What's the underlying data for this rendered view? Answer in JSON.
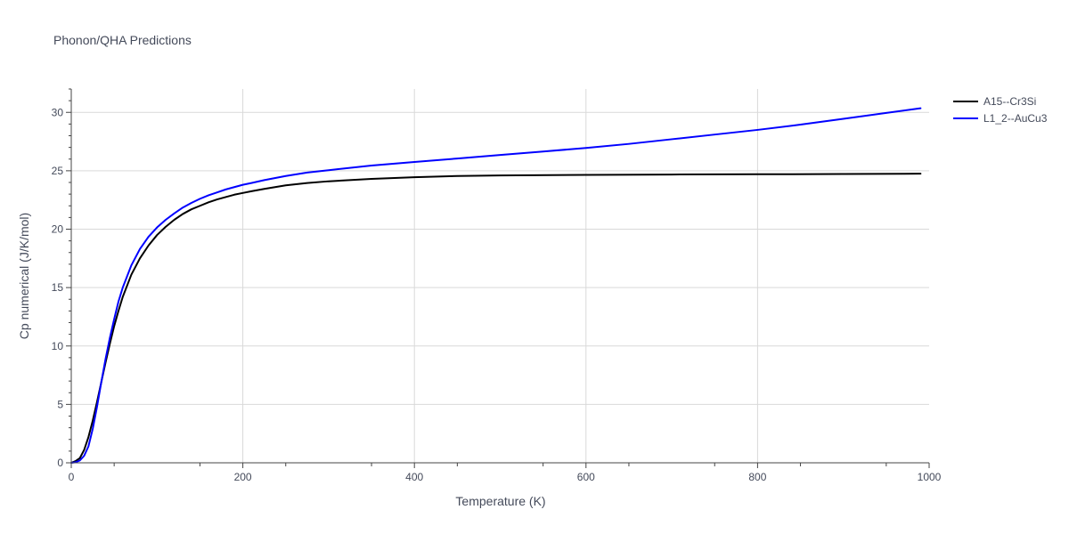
{
  "chart_data": {
    "type": "line",
    "title": "Phonon/QHA Predictions",
    "xlabel": "Temperature (K)",
    "ylabel": "Cp numerical (J/K/mol)",
    "xlim": [
      0,
      1000
    ],
    "ylim": [
      0,
      32
    ],
    "x_ticks": [
      0,
      200,
      400,
      600,
      800,
      1000
    ],
    "y_ticks": [
      0,
      5,
      10,
      15,
      20,
      25,
      30
    ],
    "grid": true,
    "legend_position": "top-right",
    "series": [
      {
        "name": "A15--Cr3Si",
        "color": "#000000",
        "x": [
          0,
          5,
          10,
          15,
          20,
          25,
          30,
          35,
          40,
          45,
          50,
          55,
          60,
          70,
          80,
          90,
          100,
          110,
          120,
          130,
          140,
          150,
          160,
          170,
          180,
          190,
          200,
          210,
          225,
          250,
          275,
          300,
          350,
          400,
          450,
          500,
          600,
          700,
          800,
          900,
          990
        ],
        "y": [
          0,
          0.15,
          0.4,
          1.1,
          2.2,
          3.6,
          5.2,
          6.9,
          8.6,
          10.2,
          11.7,
          13.0,
          14.2,
          16.1,
          17.5,
          18.6,
          19.5,
          20.2,
          20.8,
          21.3,
          21.7,
          22.0,
          22.3,
          22.55,
          22.75,
          22.95,
          23.1,
          23.25,
          23.45,
          23.75,
          23.95,
          24.1,
          24.3,
          24.45,
          24.55,
          24.6,
          24.65,
          24.68,
          24.7,
          24.72,
          24.75
        ]
      },
      {
        "name": "L1_2--AuCu3",
        "color": "#0000ff",
        "x": [
          0,
          5,
          10,
          15,
          20,
          25,
          30,
          35,
          40,
          45,
          50,
          55,
          60,
          70,
          80,
          90,
          100,
          110,
          120,
          130,
          140,
          150,
          160,
          170,
          180,
          190,
          200,
          210,
          225,
          250,
          275,
          300,
          350,
          400,
          450,
          500,
          550,
          600,
          650,
          700,
          750,
          800,
          850,
          900,
          950,
          990
        ],
        "y": [
          0,
          0.05,
          0.2,
          0.6,
          1.4,
          2.9,
          4.8,
          6.9,
          8.9,
          10.7,
          12.3,
          13.8,
          15.0,
          16.9,
          18.3,
          19.35,
          20.15,
          20.8,
          21.35,
          21.85,
          22.25,
          22.6,
          22.9,
          23.15,
          23.4,
          23.6,
          23.8,
          23.95,
          24.2,
          24.55,
          24.85,
          25.05,
          25.45,
          25.75,
          26.05,
          26.35,
          26.65,
          26.95,
          27.3,
          27.7,
          28.1,
          28.5,
          28.95,
          29.45,
          29.95,
          30.35
        ]
      }
    ]
  }
}
